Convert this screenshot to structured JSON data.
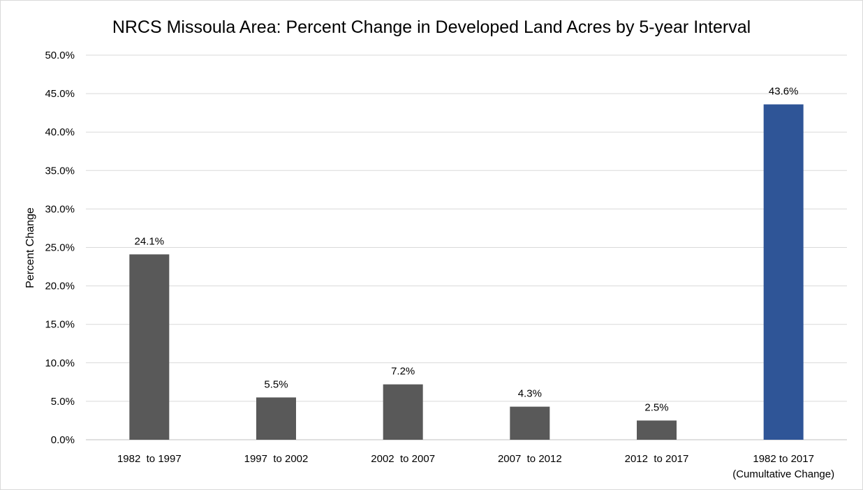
{
  "chart_data": {
    "type": "bar",
    "title": "NRCS Missoula Area: Percent Change in Developed Land Acres by 5-year Interval",
    "xlabel": "",
    "ylabel": "Percent Change",
    "ylim": [
      0,
      50
    ],
    "y_ticks": [
      "0.0%",
      "5.0%",
      "10.0%",
      "15.0%",
      "20.0%",
      "25.0%",
      "30.0%",
      "35.0%",
      "40.0%",
      "45.0%",
      "50.0%"
    ],
    "categories": [
      [
        "1982  to 1997"
      ],
      [
        "1997  to 2002"
      ],
      [
        "2002  to 2007"
      ],
      [
        "2007  to 2012"
      ],
      [
        "2012  to 2017"
      ],
      [
        "1982 to 2017",
        "(Cumultative Change)"
      ]
    ],
    "values": [
      24.1,
      5.5,
      7.2,
      4.3,
      2.5,
      43.6
    ],
    "data_labels": [
      "24.1%",
      "5.5%",
      "7.2%",
      "4.3%",
      "2.5%",
      "43.6%"
    ],
    "colors": [
      "#595959",
      "#595959",
      "#595959",
      "#595959",
      "#595959",
      "#2f5597"
    ],
    "grid": true,
    "legend": "none"
  }
}
